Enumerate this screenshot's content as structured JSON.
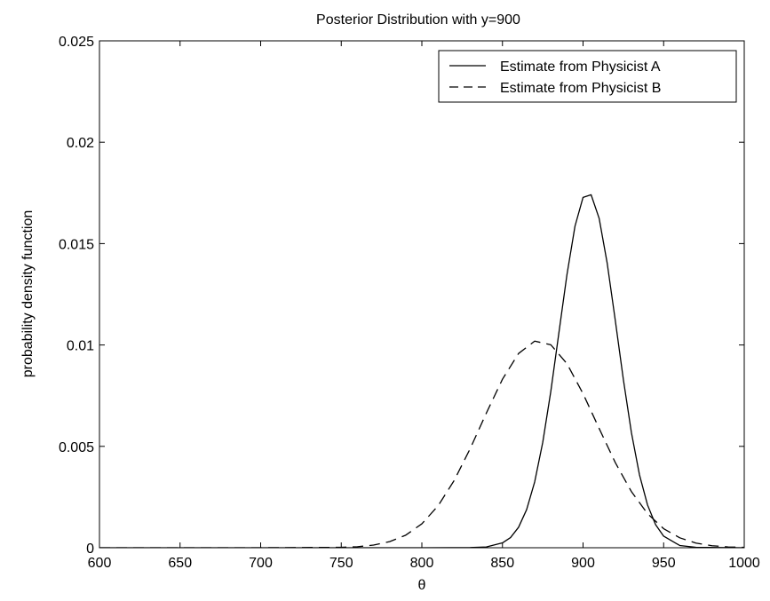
{
  "chart_data": {
    "type": "line",
    "title": "Posterior Distribution with y=900",
    "xlabel": "θ",
    "ylabel": "probability density function",
    "xlim": [
      600,
      1000
    ],
    "ylim": [
      0,
      0.025
    ],
    "xticks": [
      600,
      650,
      700,
      750,
      800,
      850,
      900,
      950,
      1000
    ],
    "xtick_labels": [
      "600",
      "650",
      "700",
      "750",
      "800",
      "850",
      "900",
      "950",
      "1000"
    ],
    "yticks": [
      0,
      0.005,
      0.01,
      0.015,
      0.02,
      0.025
    ],
    "ytick_labels": [
      "0",
      "0.005",
      "0.01",
      "0.015",
      "0.02",
      "0.025"
    ],
    "grid": false,
    "legend_position": "top-right",
    "series": [
      {
        "name": "Estimate from Physicist A",
        "style": "solid",
        "color": "#000000",
        "x": [
          600,
          650,
          700,
          750,
          800,
          830,
          840,
          850,
          855,
          860,
          865,
          870,
          875,
          880,
          885,
          890,
          895,
          900,
          905,
          910,
          915,
          920,
          925,
          930,
          935,
          940,
          945,
          950,
          960,
          970,
          1000
        ],
        "y": [
          0,
          0,
          0,
          0,
          0,
          1e-05,
          4e-05,
          0.00024,
          0.0005,
          0.00101,
          0.00188,
          0.00325,
          0.0052,
          0.00771,
          0.01059,
          0.01346,
          0.01586,
          0.01728,
          0.01741,
          0.01624,
          0.01402,
          0.01121,
          0.0083,
          0.00568,
          0.0036,
          0.00211,
          0.00114,
          0.00057,
          0.00011,
          2e-05,
          0
        ]
      },
      {
        "name": "Estimate from Physicist B",
        "style": "dashed",
        "color": "#000000",
        "x": [
          600,
          650,
          700,
          750,
          760,
          770,
          780,
          790,
          800,
          810,
          820,
          830,
          840,
          850,
          860,
          870,
          880,
          890,
          900,
          910,
          920,
          930,
          940,
          950,
          960,
          970,
          980,
          990,
          1000
        ],
        "y": [
          0,
          0,
          0,
          2e-05,
          5e-05,
          0.00013,
          0.0003,
          0.00062,
          0.00118,
          0.00206,
          0.00331,
          0.00489,
          0.00664,
          0.00831,
          0.00958,
          0.01019,
          0.01001,
          0.00908,
          0.0076,
          0.00588,
          0.0042,
          0.00277,
          0.00168,
          0.00094,
          0.00049,
          0.00023,
          0.0001,
          4e-05,
          2e-05
        ]
      }
    ]
  }
}
